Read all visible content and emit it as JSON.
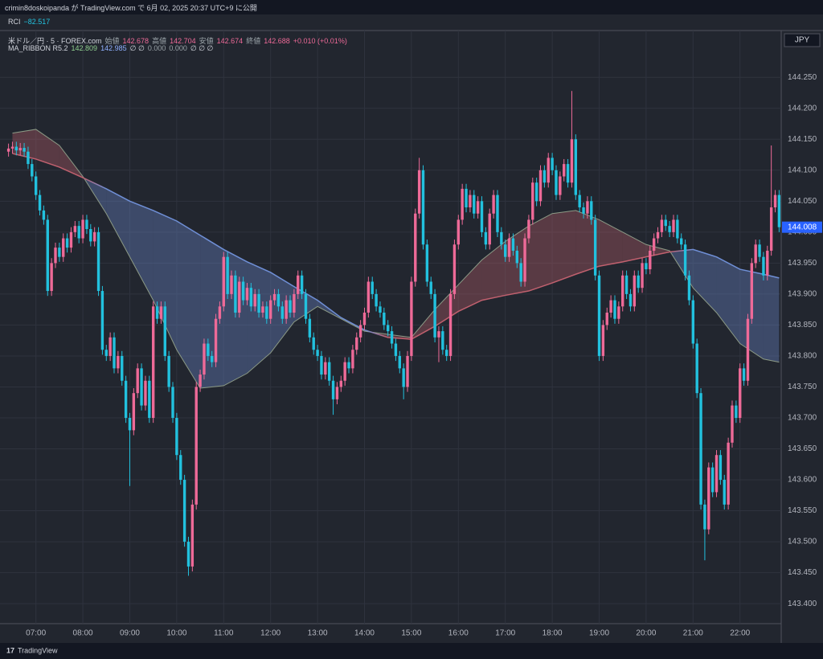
{
  "header": {
    "published": "crimin8doskoipanda が TradingView.com で 6月 02, 2025 20:37 UTC+9 に公開",
    "indicator": "RCI",
    "indicator_value": "−82.517",
    "symbol": "米ドル／円 · 5 · FOREX.com",
    "open_label": "始値",
    "open_value": "142.678",
    "high_label": "高値",
    "high_value": "142.704",
    "low_label": "安値",
    "low_value": "142.674",
    "close_label": "終値",
    "close_value": "142.688",
    "change": "+0.010 (+0.01%)",
    "ma_name": "MA_RIBBON R5.2",
    "ma_value_1": "142.809",
    "ma_value_2": "142.985",
    "ma_extra_1": "∅ ∅",
    "ma_value_3": "0.000",
    "ma_value_4": "0.000",
    "ma_extra_2": "∅ ∅ ∅",
    "currency": "JPY",
    "footer": "TradingView"
  },
  "chart_data": {
    "type": "candlestick",
    "up_color": "#ee6a98",
    "down_color": "#22c1de",
    "grid": true,
    "ylim": [
      143.369,
      144.323
    ],
    "yticks": [
      {
        "value": 143.4,
        "label": "143.400"
      },
      {
        "value": 143.45,
        "label": "143.450"
      },
      {
        "value": 143.5,
        "label": "143.500"
      },
      {
        "value": 143.55,
        "label": "143.550"
      },
      {
        "value": 143.6,
        "label": "143.600"
      },
      {
        "value": 143.65,
        "label": "143.650"
      },
      {
        "value": 143.7,
        "label": "143.700"
      },
      {
        "value": 143.75,
        "label": "143.750"
      },
      {
        "value": 143.8,
        "label": "143.800"
      },
      {
        "value": 143.85,
        "label": "143.850"
      },
      {
        "value": 143.9,
        "label": "143.900"
      },
      {
        "value": 143.95,
        "label": "143.950"
      },
      {
        "value": 144.0,
        "label": "144.000"
      },
      {
        "value": 144.05,
        "label": "144.050"
      },
      {
        "value": 144.1,
        "label": "144.100"
      },
      {
        "value": 144.15,
        "label": "144.150"
      },
      {
        "value": 144.2,
        "label": "144.200"
      },
      {
        "value": 144.25,
        "label": "144.250"
      }
    ],
    "xticks": [
      "07:00",
      "08:00",
      "09:00",
      "10:00",
      "11:00",
      "12:00",
      "13:00",
      "14:00",
      "15:00",
      "16:00",
      "17:00",
      "18:00",
      "19:00",
      "20:00",
      "21:00",
      "22:00"
    ],
    "last_price": 144.008,
    "x": [
      "06:25",
      "06:30",
      "06:35",
      "06:40",
      "06:45",
      "06:50",
      "06:55",
      "07:00",
      "07:05",
      "07:10",
      "07:15",
      "07:20",
      "07:25",
      "07:30",
      "07:35",
      "07:40",
      "07:45",
      "07:50",
      "07:55",
      "08:00",
      "08:05",
      "08:10",
      "08:15",
      "08:20",
      "08:25",
      "08:30",
      "08:35",
      "08:40",
      "08:45",
      "08:50",
      "08:55",
      "09:00",
      "09:05",
      "09:10",
      "09:15",
      "09:20",
      "09:25",
      "09:30",
      "09:35",
      "09:40",
      "09:45",
      "09:50",
      "09:55",
      "10:00",
      "10:05",
      "10:10",
      "10:15",
      "10:20",
      "10:25",
      "10:30",
      "10:35",
      "10:40",
      "10:45",
      "10:50",
      "10:55",
      "11:00",
      "11:05",
      "11:10",
      "11:15",
      "11:20",
      "11:25",
      "11:30",
      "11:35",
      "11:40",
      "11:45",
      "11:50",
      "11:55",
      "12:00",
      "12:05",
      "12:10",
      "12:15",
      "12:20",
      "12:25",
      "12:30",
      "12:35",
      "12:40",
      "12:45",
      "12:50",
      "12:55",
      "13:00",
      "13:05",
      "13:10",
      "13:15",
      "13:20",
      "13:25",
      "13:30",
      "13:35",
      "13:40",
      "13:45",
      "13:50",
      "13:55",
      "14:00",
      "14:05",
      "14:10",
      "14:15",
      "14:20",
      "14:25",
      "14:30",
      "14:35",
      "14:40",
      "14:45",
      "14:50",
      "14:55",
      "15:00",
      "15:05",
      "15:10",
      "15:15",
      "15:20",
      "15:25",
      "15:30",
      "15:35",
      "15:40",
      "15:45",
      "15:50",
      "15:55",
      "16:00",
      "16:05",
      "16:10",
      "16:15",
      "16:20",
      "16:25",
      "16:30",
      "16:35",
      "16:40",
      "16:45",
      "16:50",
      "16:55",
      "17:00",
      "17:05",
      "17:10",
      "17:15",
      "17:20",
      "17:25",
      "17:30",
      "17:35",
      "17:40",
      "17:45",
      "17:50",
      "17:55",
      "18:00",
      "18:05",
      "18:10",
      "18:15",
      "18:20",
      "18:25",
      "18:30",
      "18:35",
      "18:40",
      "18:45",
      "18:50",
      "18:55",
      "19:00",
      "19:05",
      "19:10",
      "19:15",
      "19:20",
      "19:25",
      "19:30",
      "19:35",
      "19:40",
      "19:45",
      "19:50",
      "19:55",
      "20:00",
      "20:05",
      "20:10",
      "20:15",
      "20:20",
      "20:25",
      "20:30",
      "20:35",
      "20:40",
      "20:45",
      "20:50",
      "20:55",
      "21:00",
      "21:05",
      "21:10",
      "21:15",
      "21:20",
      "21:25",
      "21:30",
      "21:35",
      "21:40",
      "21:45",
      "21:50",
      "21:55",
      "22:00",
      "22:05",
      "22:10",
      "22:15",
      "22:20",
      "22:25",
      "22:30",
      "22:35",
      "22:40",
      "22:45",
      "22:50"
    ],
    "open": [
      144.13,
      144.135,
      144.138,
      144.132,
      144.136,
      144.13,
      144.11,
      144.09,
      144.06,
      144.035,
      144.02,
      143.905,
      143.95,
      143.975,
      143.96,
      143.99,
      143.975,
      144.0,
      144.01,
      143.99,
      144.02,
      144.005,
      143.985,
      144.0,
      143.905,
      143.81,
      143.8,
      143.83,
      143.78,
      143.8,
      143.76,
      143.7,
      143.68,
      143.74,
      143.78,
      143.72,
      143.76,
      143.7,
      143.88,
      143.86,
      143.88,
      143.8,
      143.75,
      143.7,
      143.64,
      143.6,
      143.5,
      143.46,
      143.56,
      143.75,
      143.77,
      143.82,
      143.8,
      143.79,
      143.86,
      143.88,
      143.96,
      143.9,
      143.93,
      143.87,
      143.92,
      143.89,
      143.91,
      143.88,
      143.9,
      143.87,
      143.88,
      143.86,
      143.89,
      143.9,
      143.88,
      143.86,
      143.89,
      143.87,
      143.9,
      143.93,
      143.9,
      143.86,
      143.83,
      143.81,
      143.8,
      143.77,
      143.79,
      143.76,
      143.73,
      143.75,
      143.76,
      143.79,
      143.78,
      143.81,
      143.83,
      143.85,
      143.87,
      143.92,
      143.9,
      143.88,
      143.87,
      143.85,
      143.84,
      143.82,
      143.8,
      143.78,
      143.75,
      143.8,
      143.92,
      144.03,
      144.1,
      143.98,
      143.92,
      143.9,
      143.83,
      143.84,
      143.81,
      143.8,
      143.9,
      143.98,
      144.02,
      144.07,
      144.04,
      144.06,
      144.03,
      144.05,
      144.0,
      143.98,
      144.03,
      144.06,
      144.0,
      143.98,
      143.96,
      143.99,
      143.97,
      143.95,
      143.92,
      143.99,
      144.02,
      144.08,
      144.05,
      144.1,
      144.08,
      144.12,
      144.1,
      144.06,
      144.09,
      144.11,
      144.08,
      144.15,
      144.06,
      144.04,
      144.03,
      144.05,
      144.02,
      143.93,
      143.8,
      143.85,
      143.87,
      143.89,
      143.86,
      143.88,
      143.93,
      143.9,
      143.88,
      143.93,
      143.91,
      143.95,
      143.94,
      143.97,
      143.99,
      144.0,
      144.02,
      144.01,
      144.0,
      144.02,
      143.99,
      143.98,
      143.93,
      143.89,
      143.82,
      143.74,
      143.56,
      143.52,
      143.62,
      143.58,
      143.64,
      143.6,
      143.56,
      143.66,
      143.72,
      143.7,
      143.78,
      143.76,
      143.86,
      143.95,
      143.98,
      143.96,
      143.93,
      143.97,
      144.04,
      144.06
    ],
    "high": [
      144.143,
      144.146,
      144.146,
      144.144,
      144.144,
      144.138,
      144.118,
      144.098,
      144.068,
      144.043,
      144.028,
      143.958,
      143.983,
      143.983,
      143.998,
      143.998,
      144.008,
      144.018,
      144.018,
      144.028,
      144.028,
      144.013,
      144.008,
      144.008,
      143.913,
      143.818,
      143.838,
      143.838,
      143.808,
      143.808,
      143.768,
      143.708,
      143.748,
      143.788,
      143.788,
      143.768,
      143.768,
      143.888,
      143.888,
      143.888,
      143.888,
      143.808,
      143.758,
      143.708,
      143.648,
      143.608,
      143.508,
      143.568,
      143.758,
      143.778,
      143.828,
      143.828,
      143.808,
      143.868,
      143.888,
      143.968,
      143.968,
      143.938,
      143.938,
      143.928,
      143.928,
      143.918,
      143.918,
      143.908,
      143.908,
      143.888,
      143.888,
      143.898,
      143.908,
      143.908,
      143.888,
      143.898,
      143.898,
      143.908,
      143.938,
      143.938,
      143.908,
      143.868,
      143.838,
      143.818,
      143.808,
      143.798,
      143.798,
      143.768,
      143.758,
      143.768,
      143.798,
      143.798,
      143.818,
      143.838,
      143.858,
      143.878,
      143.928,
      143.928,
      143.908,
      143.888,
      143.878,
      143.858,
      143.848,
      143.828,
      143.808,
      143.788,
      143.808,
      143.928,
      144.038,
      144.12,
      144.108,
      143.988,
      143.928,
      143.908,
      143.848,
      143.848,
      143.818,
      143.908,
      143.988,
      144.028,
      144.078,
      144.078,
      144.068,
      144.068,
      144.058,
      144.058,
      144.008,
      144.038,
      144.068,
      144.068,
      144.008,
      143.988,
      143.998,
      143.998,
      143.978,
      143.958,
      143.998,
      144.028,
      144.088,
      144.088,
      144.108,
      144.108,
      144.128,
      144.128,
      144.108,
      144.098,
      144.118,
      144.118,
      144.228,
      144.158,
      144.068,
      144.048,
      144.058,
      144.058,
      144.028,
      143.938,
      143.858,
      143.878,
      143.898,
      143.898,
      143.888,
      143.938,
      143.938,
      143.908,
      143.938,
      143.938,
      143.958,
      143.958,
      143.978,
      143.998,
      144.008,
      144.028,
      144.028,
      144.018,
      144.028,
      144.028,
      143.998,
      143.988,
      143.938,
      143.898,
      143.828,
      143.748,
      143.568,
      143.628,
      143.628,
      143.648,
      143.648,
      143.608,
      143.668,
      143.728,
      143.728,
      143.788,
      143.788,
      143.868,
      143.958,
      143.988,
      143.988,
      143.968,
      143.978,
      144.14,
      144.068,
      144.068
    ],
    "low": [
      144.122,
      144.127,
      144.124,
      144.124,
      144.122,
      144.102,
      144.082,
      144.052,
      144.027,
      144.012,
      143.897,
      143.897,
      143.942,
      143.952,
      143.952,
      143.967,
      143.967,
      143.992,
      143.982,
      143.982,
      143.997,
      143.977,
      143.977,
      143.897,
      143.802,
      143.792,
      143.792,
      143.772,
      143.772,
      143.752,
      143.692,
      143.59,
      143.672,
      143.732,
      143.712,
      143.712,
      143.692,
      143.692,
      143.852,
      143.852,
      143.792,
      143.742,
      143.692,
      143.632,
      143.592,
      143.492,
      143.445,
      143.452,
      143.552,
      143.742,
      143.762,
      143.792,
      143.782,
      143.782,
      143.852,
      143.872,
      143.892,
      143.892,
      143.862,
      143.862,
      143.882,
      143.882,
      143.872,
      143.872,
      143.862,
      143.862,
      143.852,
      143.852,
      143.882,
      143.872,
      143.852,
      143.852,
      143.862,
      143.862,
      143.892,
      143.892,
      143.852,
      143.822,
      143.802,
      143.792,
      143.762,
      143.762,
      143.752,
      143.705,
      143.722,
      143.742,
      143.752,
      143.772,
      143.772,
      143.802,
      143.822,
      143.842,
      143.862,
      143.892,
      143.872,
      143.862,
      143.842,
      143.832,
      143.812,
      143.792,
      143.772,
      143.73,
      143.742,
      143.792,
      143.912,
      144.022,
      143.972,
      143.912,
      143.892,
      143.822,
      143.79,
      143.802,
      143.792,
      143.792,
      143.892,
      143.972,
      144.012,
      144.032,
      144.032,
      144.022,
      144.022,
      143.992,
      143.972,
      143.972,
      144.022,
      143.992,
      143.972,
      143.952,
      143.952,
      143.962,
      143.942,
      143.912,
      143.912,
      143.982,
      144.012,
      144.042,
      144.042,
      144.072,
      144.072,
      144.092,
      144.052,
      144.052,
      144.082,
      144.072,
      144.072,
      144.052,
      144.032,
      144.022,
      144.022,
      144.012,
      143.922,
      143.792,
      143.792,
      143.842,
      143.862,
      143.852,
      143.852,
      143.872,
      143.892,
      143.872,
      143.872,
      143.902,
      143.902,
      143.932,
      143.932,
      143.962,
      143.982,
      143.992,
      144.002,
      143.992,
      143.992,
      143.982,
      143.972,
      143.922,
      143.882,
      143.812,
      143.732,
      143.552,
      143.47,
      143.512,
      143.572,
      143.572,
      143.592,
      143.552,
      143.552,
      143.652,
      143.692,
      143.692,
      143.752,
      143.752,
      143.852,
      143.942,
      143.952,
      143.922,
      143.922,
      143.962,
      144.032,
      144.0
    ],
    "close": [
      144.135,
      144.138,
      144.132,
      144.136,
      144.13,
      144.11,
      144.09,
      144.06,
      144.035,
      144.02,
      143.905,
      143.95,
      143.975,
      143.96,
      143.99,
      143.975,
      144.0,
      144.01,
      143.99,
      144.02,
      144.005,
      143.985,
      144.0,
      143.905,
      143.81,
      143.8,
      143.83,
      143.78,
      143.8,
      143.76,
      143.7,
      143.68,
      143.74,
      143.78,
      143.72,
      143.76,
      143.7,
      143.88,
      143.86,
      143.88,
      143.8,
      143.75,
      143.7,
      143.64,
      143.6,
      143.5,
      143.46,
      143.56,
      143.75,
      143.77,
      143.82,
      143.8,
      143.79,
      143.86,
      143.88,
      143.96,
      143.9,
      143.93,
      143.87,
      143.92,
      143.89,
      143.91,
      143.88,
      143.9,
      143.87,
      143.88,
      143.86,
      143.89,
      143.9,
      143.88,
      143.86,
      143.89,
      143.87,
      143.9,
      143.93,
      143.9,
      143.86,
      143.83,
      143.81,
      143.8,
      143.77,
      143.79,
      143.76,
      143.73,
      143.75,
      143.76,
      143.79,
      143.78,
      143.81,
      143.83,
      143.85,
      143.87,
      143.92,
      143.9,
      143.88,
      143.87,
      143.85,
      143.84,
      143.82,
      143.8,
      143.78,
      143.75,
      143.8,
      143.92,
      144.03,
      144.1,
      143.98,
      143.92,
      143.9,
      143.83,
      143.84,
      143.81,
      143.8,
      143.9,
      143.98,
      144.02,
      144.07,
      144.04,
      144.06,
      144.03,
      144.05,
      144.0,
      143.98,
      144.03,
      144.06,
      144.0,
      143.98,
      143.96,
      143.99,
      143.97,
      143.95,
      143.92,
      143.99,
      144.02,
      144.08,
      144.05,
      144.1,
      144.08,
      144.12,
      144.1,
      144.06,
      144.09,
      144.11,
      144.08,
      144.15,
      144.06,
      144.04,
      144.03,
      144.05,
      144.02,
      143.93,
      143.8,
      143.85,
      143.87,
      143.89,
      143.86,
      143.88,
      143.93,
      143.9,
      143.88,
      143.93,
      143.91,
      143.95,
      143.94,
      143.97,
      143.99,
      144.0,
      144.02,
      144.01,
      144.0,
      144.02,
      143.99,
      143.98,
      143.93,
      143.89,
      143.82,
      143.74,
      143.56,
      143.52,
      143.62,
      143.58,
      143.64,
      143.6,
      143.56,
      143.66,
      143.72,
      143.7,
      143.78,
      143.76,
      143.86,
      143.95,
      143.98,
      143.96,
      143.93,
      143.97,
      144.04,
      144.06,
      144.008
    ],
    "ma_ribbon": {
      "above_color": "#c0606e",
      "below_color": "#6f8fd6",
      "fast_color": "#8c9a86",
      "x": [
        "06:30",
        "07:00",
        "07:30",
        "08:00",
        "08:30",
        "09:00",
        "09:30",
        "10:00",
        "10:30",
        "11:00",
        "11:30",
        "12:00",
        "12:30",
        "13:00",
        "13:30",
        "14:00",
        "14:30",
        "15:00",
        "15:30",
        "16:00",
        "16:30",
        "17:00",
        "17:30",
        "18:00",
        "18:30",
        "19:00",
        "19:30",
        "20:00",
        "20:30",
        "21:00",
        "21:30",
        "22:00",
        "22:30",
        "22:50"
      ],
      "fast": [
        144.16,
        144.166,
        144.14,
        144.09,
        144.03,
        143.96,
        143.89,
        143.81,
        143.748,
        143.752,
        143.772,
        143.805,
        143.855,
        143.88,
        143.86,
        143.84,
        143.835,
        143.83,
        143.875,
        143.915,
        143.955,
        143.985,
        144.01,
        144.03,
        144.035,
        144.02,
        144.0,
        143.98,
        143.97,
        143.91,
        143.87,
        143.82,
        143.795,
        143.79
      ],
      "slow": [
        144.127,
        144.118,
        144.105,
        144.088,
        144.07,
        144.05,
        144.035,
        144.018,
        143.995,
        143.972,
        143.952,
        143.935,
        143.912,
        143.89,
        143.862,
        143.842,
        143.83,
        143.827,
        143.848,
        143.872,
        143.89,
        143.898,
        143.905,
        143.918,
        143.932,
        143.945,
        143.952,
        143.96,
        143.968,
        143.972,
        143.96,
        143.94,
        143.932,
        143.926
      ]
    }
  }
}
